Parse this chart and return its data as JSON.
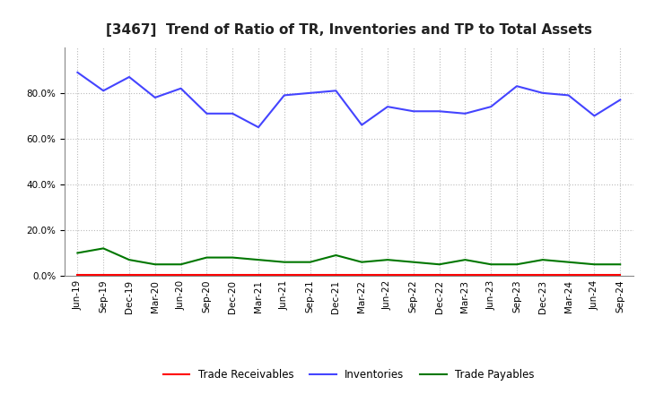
{
  "title": "[3467]  Trend of Ratio of TR, Inventories and TP to Total Assets",
  "x_labels": [
    "Jun-19",
    "Sep-19",
    "Dec-19",
    "Mar-20",
    "Jun-20",
    "Sep-20",
    "Dec-20",
    "Mar-21",
    "Jun-21",
    "Sep-21",
    "Dec-21",
    "Mar-22",
    "Jun-22",
    "Sep-22",
    "Dec-22",
    "Mar-23",
    "Jun-23",
    "Sep-23",
    "Dec-23",
    "Mar-24",
    "Jun-24",
    "Sep-24"
  ],
  "trade_receivables": [
    0.5,
    0.5,
    0.5,
    0.5,
    0.5,
    0.5,
    0.5,
    0.5,
    0.5,
    0.5,
    0.5,
    0.5,
    0.5,
    0.5,
    0.5,
    0.5,
    0.5,
    0.5,
    0.5,
    0.5,
    0.5,
    0.5
  ],
  "inventories": [
    89,
    81,
    87,
    78,
    82,
    71,
    71,
    65,
    79,
    80,
    81,
    66,
    74,
    72,
    72,
    71,
    74,
    83,
    80,
    79,
    70,
    77
  ],
  "trade_payables": [
    10,
    12,
    7,
    5,
    5,
    8,
    8,
    7,
    6,
    6,
    9,
    6,
    7,
    6,
    5,
    7,
    5,
    5,
    7,
    6,
    5,
    5
  ],
  "line_colors": {
    "trade_receivables": "#ff0000",
    "inventories": "#4444ff",
    "trade_payables": "#007700"
  },
  "legend_labels": [
    "Trade Receivables",
    "Inventories",
    "Trade Payables"
  ],
  "ylim": [
    0,
    100
  ],
  "yticks": [
    0,
    20,
    40,
    60,
    80
  ],
  "background_color": "#ffffff",
  "grid_color": "#bbbbbb",
  "title_fontsize": 11,
  "tick_fontsize": 7.5,
  "legend_fontsize": 8.5
}
